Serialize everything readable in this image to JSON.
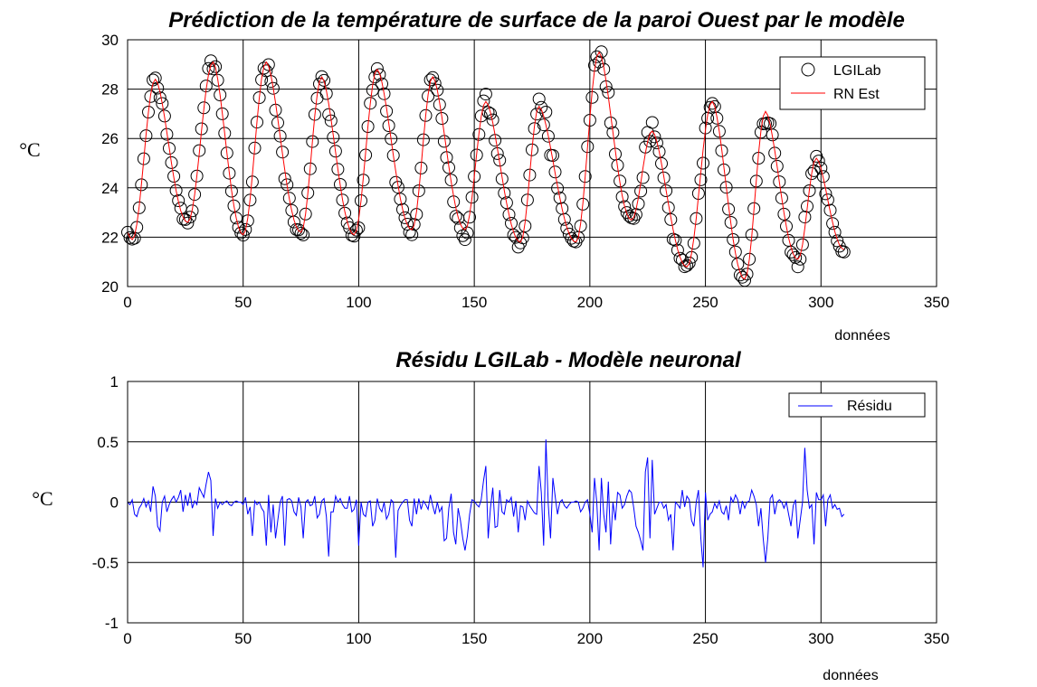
{
  "chart_data": [
    {
      "type": "scatter",
      "title": "Prédiction de la température de surface de la paroi Ouest par le modèle",
      "xlabel": "données",
      "ylabel": "°C",
      "xlim": [
        0,
        350
      ],
      "ylim": [
        20,
        30
      ],
      "xticks": [
        "0",
        "50",
        "100",
        "150",
        "200",
        "250",
        "300",
        "350"
      ],
      "yticks": [
        "20",
        "22",
        "24",
        "26",
        "28",
        "30"
      ],
      "grid": true,
      "legend_position": "top-right",
      "series": [
        {
          "name": "LGILab",
          "style": "circle",
          "color": "#000000",
          "source": "model_plus_residual"
        },
        {
          "name": "RN Est",
          "style": "line",
          "color": "#ff0000"
        }
      ],
      "cycles": [
        [
          2,
          21.9,
          12,
          28.4
        ],
        [
          26,
          22.6,
          37,
          29.1
        ],
        [
          50,
          22.1,
          60,
          29.1
        ],
        [
          75,
          22.2,
          84,
          28.5
        ],
        [
          98,
          22.1,
          108,
          28.8
        ],
        [
          123,
          22.3,
          132,
          28.5
        ],
        [
          146,
          22.3,
          155,
          27.5
        ],
        [
          170,
          21.8,
          178,
          27.3
        ],
        [
          194,
          21.8,
          204,
          29.5
        ],
        [
          218,
          22.7,
          227,
          26.3
        ],
        [
          242,
          20.8,
          253,
          27.5
        ],
        [
          267,
          20.3,
          276,
          27.1
        ],
        [
          290,
          21.1,
          298,
          25.2
        ],
        [
          310,
          21.5,
          310,
          21.5
        ]
      ]
    },
    {
      "type": "line",
      "title": "Résidu LGILab - Modèle neuronal",
      "xlabel": "données",
      "ylabel": "°C",
      "xlim": [
        0,
        350
      ],
      "ylim": [
        -1,
        1
      ],
      "xticks": [
        "0",
        "50",
        "100",
        "150",
        "200",
        "250",
        "300",
        "350"
      ],
      "yticks": [
        "-1",
        "-0.5",
        "0",
        "0.5",
        "1"
      ],
      "grid": true,
      "legend_position": "top-right",
      "series": [
        {
          "name": "Résidu",
          "color": "#0000ff",
          "x_start": 0,
          "values": [
            0.0,
            -0.02,
            0.02,
            -0.1,
            -0.12,
            -0.05,
            -0.02,
            0.03,
            -0.04,
            0.01,
            -0.08,
            0.13,
            0.05,
            -0.2,
            -0.24,
            0.0,
            0.05,
            -0.08,
            -0.02,
            0.02,
            0.05,
            0.0,
            0.04,
            0.1,
            -0.08,
            0.06,
            -0.03,
            0.08,
            -0.05,
            0.01,
            -0.02,
            0.12,
            0.08,
            0.04,
            0.15,
            0.25,
            0.18,
            -0.28,
            0.03,
            -0.05,
            0.0,
            -0.02,
            0.0,
            0.01,
            -0.02,
            -0.03,
            0.0,
            0.01,
            0.0,
            0.0,
            -0.02,
            0.04,
            -0.1,
            -0.04,
            -0.28,
            0.01,
            -0.02,
            0.0,
            -0.05,
            -0.08,
            -0.36,
            0.06,
            -0.25,
            -0.02,
            -0.3,
            -0.15,
            0.0,
            0.05,
            -0.36,
            0.02,
            0.03,
            0.01,
            -0.08,
            -0.11,
            0.04,
            -0.04,
            -0.3,
            0.0,
            0.02,
            -0.03,
            -0.02,
            0.05,
            -0.13,
            -0.1,
            0.01,
            0.03,
            -0.12,
            -0.45,
            -0.08,
            -0.08,
            0.05,
            0.0,
            0.03,
            -0.02,
            -0.05,
            -0.05,
            0.05,
            -0.08,
            -0.06,
            0.02,
            -0.36,
            0.0,
            -0.1,
            -0.12,
            0.0,
            0.01,
            -0.2,
            -0.15,
            0.03,
            -0.05,
            -0.08,
            0.0,
            -0.14,
            -0.1,
            0.02,
            0.0,
            -0.46,
            -0.07,
            -0.03,
            0.0,
            0.02,
            0.02,
            -0.15,
            -0.2,
            0.03,
            -0.1,
            0.03,
            -0.06,
            0.01,
            -0.02,
            -0.06,
            0.06,
            -0.03,
            -0.1,
            0.0,
            -0.08,
            -0.04,
            -0.32,
            -0.3,
            -0.05,
            0.07,
            -0.25,
            -0.35,
            -0.05,
            -0.15,
            -0.3,
            -0.4,
            -0.28,
            -0.1,
            0.02,
            0.01,
            -0.02,
            -0.04,
            0.02,
            0.18,
            0.3,
            -0.3,
            -0.05,
            0.12,
            -0.21,
            -0.2,
            0.1,
            -0.08,
            -0.1,
            0.02,
            0.0,
            0.04,
            -0.12,
            0.01,
            -0.25,
            -0.03,
            -0.04,
            -0.15,
            0.01,
            -0.03,
            -0.06,
            -0.09,
            -0.1,
            0.3,
            0.08,
            -0.36,
            0.52,
            -0.02,
            -0.3,
            0.2,
            0.05,
            -0.1,
            0.0,
            0.02,
            -0.03,
            -0.05,
            -0.02,
            0.0,
            0.0,
            0.01,
            0.0,
            -0.08,
            -0.05,
            0.0,
            0.02,
            -0.1,
            -0.25,
            0.2,
            0.0,
            -0.4,
            0.2,
            -0.1,
            -0.25,
            0.17,
            -0.35,
            0.0,
            -0.15,
            0.08,
            0.06,
            -0.05,
            -0.02,
            0.05,
            0.1,
            0.08,
            -0.05,
            -0.2,
            -0.25,
            -0.32,
            -0.4,
            0.25,
            0.37,
            -0.3,
            0.35,
            -0.1,
            -0.05,
            0.0,
            0.0,
            -0.05,
            -0.02,
            -0.15,
            -0.1,
            -0.4,
            0.0,
            -0.02,
            -0.05,
            0.1,
            -0.04,
            0.05,
            0.02,
            -0.15,
            -0.2,
            0.0,
            0.1,
            -0.3,
            -0.54,
            0.08,
            -0.15,
            -0.1,
            -0.08,
            -0.01,
            -0.05,
            0.01,
            -0.08,
            -0.1,
            -0.03,
            -0.15,
            0.04,
            0.0,
            0.06,
            0.02,
            -0.1,
            0.01,
            -0.05,
            0.0,
            0.01,
            0.1,
            0.05,
            -0.02,
            -0.2,
            -0.05,
            -0.3,
            -0.5,
            -0.3,
            0.03,
            0.06,
            -0.1,
            0.0,
            0.02,
            0.0,
            -0.05,
            0.0,
            -0.1,
            -0.2,
            -0.03,
            0.02,
            -0.3,
            -0.15,
            0.0,
            0.45,
            0.1,
            -0.05,
            -0.02,
            -0.35,
            0.08,
            0.02,
            0.02,
            0.06,
            -0.2,
            0.02,
            0.06,
            -0.05,
            -0.02,
            -0.06,
            -0.05,
            -0.12,
            -0.1
          ]
        }
      ]
    }
  ]
}
